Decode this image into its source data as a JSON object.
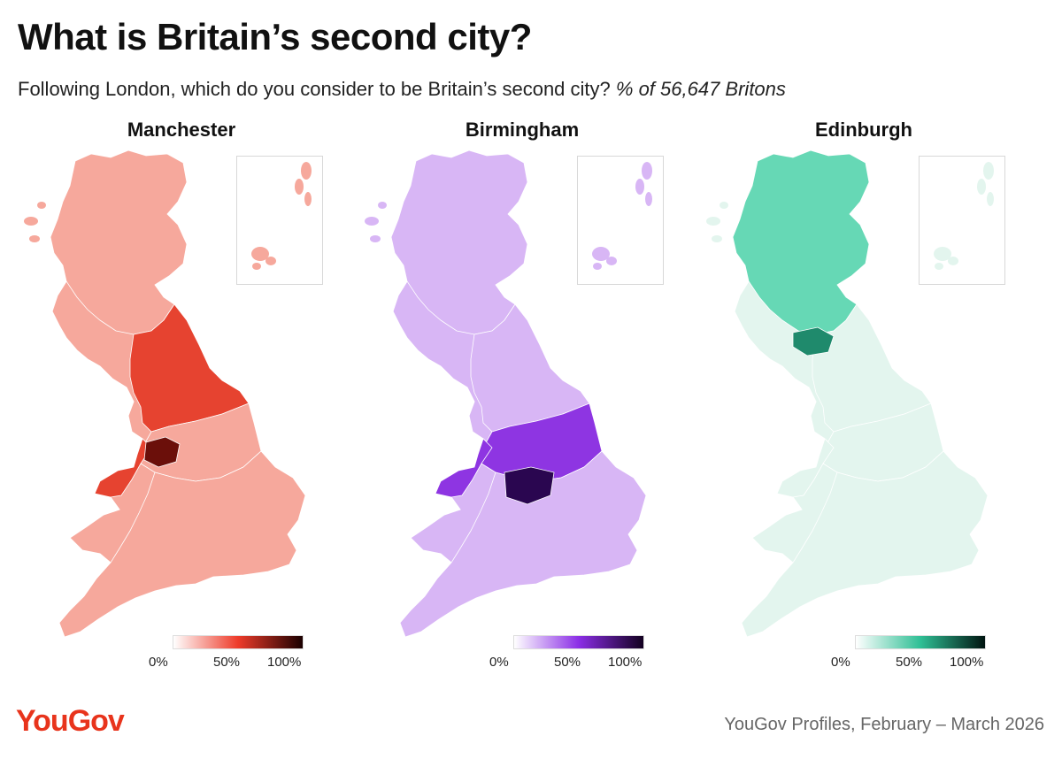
{
  "title": "What is Britain’s second city?",
  "subtitle": {
    "question": "Following London, which do you consider to be Britain’s second city?",
    "base": "% of 56,647 Britons"
  },
  "panels": [
    {
      "name": "Manchester",
      "colors": {
        "low": "#ffffff",
        "mid": "#ee3b2a",
        "high": "#1a0000",
        "fill": "#f6a89c",
        "highlight": "#e64330",
        "peak": "#6b0f0a"
      },
      "legend": {
        "ticks": [
          "0%",
          "50%",
          "100%"
        ]
      }
    },
    {
      "name": "Birmingham",
      "colors": {
        "low": "#ffffff",
        "mid": "#8b2ee6",
        "high": "#12001f",
        "fill": "#d8b6f5",
        "highlight": "#8e35e2",
        "peak": "#2a0650"
      },
      "legend": {
        "ticks": [
          "0%",
          "50%",
          "100%"
        ]
      }
    },
    {
      "name": "Edinburgh",
      "colors": {
        "low": "#ffffff",
        "mid": "#2fbf95",
        "high": "#001410",
        "fill": "#e3f5ee",
        "highlight": "#66d8b5",
        "peak": "#1f8a6c"
      },
      "legend": {
        "ticks": [
          "0%",
          "50%",
          "100%"
        ]
      }
    }
  ],
  "footer": {
    "logo": "YouGov",
    "source": "YouGov Profiles, February – March 2026"
  }
}
